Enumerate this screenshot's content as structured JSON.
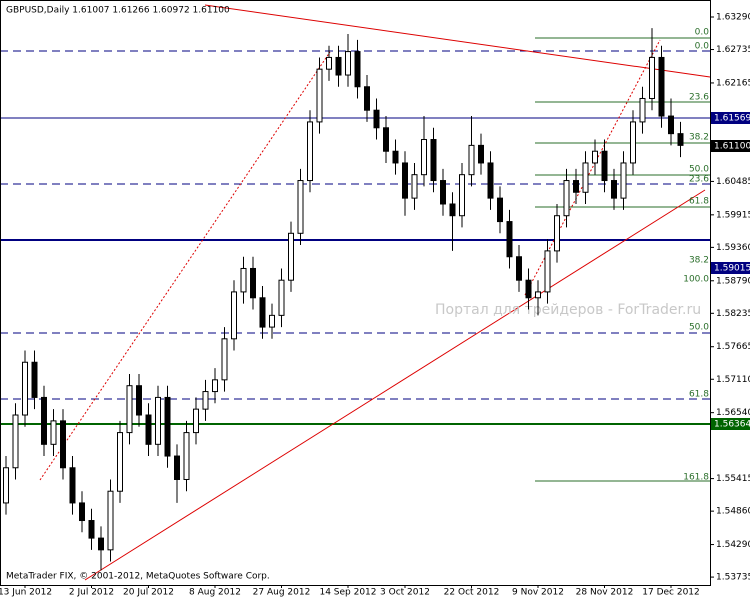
{
  "chart_data": {
    "type": "candlestick",
    "title": "GBPUSD,Daily  1.61007 1.61266 1.60972 1.61100",
    "footer": "MetaTrader FIX, © 2001-2012, MetaQuotes Software Corp.",
    "watermark": "Портал для трейдеров - ForTrader.ru",
    "categories": [
      null,
      null,
      "13 Jun 2012",
      null,
      null,
      null,
      null,
      null,
      null,
      "2 Jul 2012",
      null,
      null,
      null,
      null,
      null,
      "20 Jul 2012",
      null,
      null,
      null,
      null,
      null,
      null,
      "8 Aug 2012",
      null,
      null,
      null,
      null,
      null,
      null,
      "27 Aug 2012",
      null,
      null,
      null,
      null,
      null,
      null,
      "14 Sep 2012",
      null,
      null,
      null,
      null,
      null,
      "3 Oct 2012",
      null,
      null,
      null,
      null,
      null,
      null,
      "22 Oct 2012",
      null,
      null,
      null,
      null,
      null,
      null,
      "9 Nov 2012",
      null,
      null,
      null,
      null,
      null,
      null,
      "28 Nov 2012",
      null,
      null,
      null,
      null,
      null,
      null,
      "17 Dec 2012",
      null
    ],
    "open": [
      1.55,
      1.556,
      1.565,
      1.574,
      1.568,
      1.56,
      1.564,
      1.556,
      1.55,
      1.547,
      1.544,
      1.542,
      1.552,
      1.562,
      1.57,
      1.565,
      1.56,
      1.568,
      1.558,
      1.554,
      1.562,
      1.566,
      1.569,
      1.571,
      1.578,
      1.586,
      1.59,
      1.585,
      1.58,
      1.582,
      1.588,
      1.596,
      1.605,
      1.615,
      1.624,
      1.626,
      1.623,
      1.627,
      1.621,
      1.617,
      1.614,
      1.61,
      1.608,
      1.602,
      1.606,
      1.612,
      1.605,
      1.601,
      1.599,
      1.606,
      1.611,
      1.608,
      1.602,
      1.598,
      1.592,
      1.588,
      1.585,
      1.586,
      1.593,
      1.599,
      1.605,
      1.603,
      1.608,
      1.61,
      1.605,
      1.602,
      1.608,
      1.615,
      1.619,
      1.626,
      1.616,
      1.613
    ],
    "high": [
      1.558,
      1.567,
      1.576,
      1.576,
      1.57,
      1.566,
      1.566,
      1.558,
      1.552,
      1.549,
      1.546,
      1.554,
      1.564,
      1.572,
      1.572,
      1.567,
      1.57,
      1.57,
      1.56,
      1.564,
      1.568,
      1.571,
      1.573,
      1.58,
      1.588,
      1.592,
      1.592,
      1.587,
      1.584,
      1.59,
      1.598,
      1.607,
      1.617,
      1.626,
      1.628,
      1.628,
      1.63,
      1.629,
      1.623,
      1.619,
      1.616,
      1.612,
      1.61,
      1.608,
      1.616,
      1.614,
      1.607,
      1.603,
      1.608,
      1.616,
      1.613,
      1.61,
      1.604,
      1.6,
      1.594,
      1.59,
      1.588,
      1.595,
      1.601,
      1.607,
      1.607,
      1.61,
      1.612,
      1.612,
      1.607,
      1.61,
      1.617,
      1.621,
      1.631,
      1.628,
      1.619,
      1.615
    ],
    "low": [
      1.548,
      1.554,
      1.563,
      1.566,
      1.558,
      1.558,
      1.554,
      1.548,
      1.545,
      1.542,
      1.5385,
      1.54,
      1.55,
      1.56,
      1.563,
      1.558,
      1.558,
      1.556,
      1.55,
      1.552,
      1.56,
      1.564,
      1.567,
      1.569,
      1.576,
      1.584,
      1.583,
      1.578,
      1.578,
      1.58,
      1.586,
      1.594,
      1.603,
      1.613,
      1.622,
      1.621,
      1.621,
      1.619,
      1.615,
      1.612,
      1.608,
      1.606,
      1.599,
      1.6,
      1.604,
      1.603,
      1.599,
      1.593,
      1.597,
      1.604,
      1.606,
      1.6,
      1.596,
      1.59,
      1.586,
      1.583,
      1.582,
      1.584,
      1.591,
      1.597,
      1.601,
      1.601,
      1.606,
      1.603,
      1.6,
      1.6,
      1.606,
      1.613,
      1.617,
      1.614,
      1.611,
      1.609
    ],
    "close": [
      1.556,
      1.565,
      1.574,
      1.568,
      1.56,
      1.564,
      1.556,
      1.55,
      1.547,
      1.544,
      1.542,
      1.552,
      1.562,
      1.57,
      1.565,
      1.56,
      1.568,
      1.558,
      1.554,
      1.562,
      1.566,
      1.569,
      1.571,
      1.578,
      1.586,
      1.59,
      1.585,
      1.58,
      1.582,
      1.588,
      1.596,
      1.605,
      1.615,
      1.624,
      1.626,
      1.623,
      1.627,
      1.621,
      1.617,
      1.614,
      1.61,
      1.608,
      1.602,
      1.606,
      1.612,
      1.605,
      1.601,
      1.599,
      1.606,
      1.611,
      1.608,
      1.602,
      1.598,
      1.592,
      1.588,
      1.585,
      1.586,
      1.593,
      1.599,
      1.605,
      1.603,
      1.608,
      1.61,
      1.605,
      1.602,
      1.608,
      1.615,
      1.619,
      1.626,
      1.616,
      1.613,
      1.611
    ],
    "ylim": [
      1.536,
      1.6358
    ],
    "yticks": [
      {
        "value": 1.6329,
        "label": "1.63290"
      },
      {
        "value": 1.62735,
        "label": "1.62735"
      },
      {
        "value": 1.62165,
        "label": "1.62165"
      },
      {
        "value": 1.60485,
        "label": "1.60485"
      },
      {
        "value": 1.59915,
        "label": "1.59915"
      },
      {
        "value": 1.5936,
        "label": "1.59360"
      },
      {
        "value": 1.5879,
        "label": "1.58790"
      },
      {
        "value": 1.58235,
        "label": "1.58235"
      },
      {
        "value": 1.57665,
        "label": "1.57665"
      },
      {
        "value": 1.5711,
        "label": "1.57110"
      },
      {
        "value": 1.5654,
        "label": "1.56540"
      },
      {
        "value": 1.55415,
        "label": "1.55415"
      },
      {
        "value": 1.5486,
        "label": "1.54860"
      },
      {
        "value": 1.5429,
        "label": "1.54290"
      },
      {
        "value": 1.53735,
        "label": "1.53735"
      }
    ],
    "price_tags": [
      "1.61569",
      "1.61100",
      "1.59015",
      "1.56364"
    ],
    "fib_levels": [
      "0.0",
      "0.0",
      "23.6",
      "38.2",
      "50.0",
      "23.6",
      "61.8",
      "38.2",
      "100.0",
      "50.0",
      "61.8",
      "161.8"
    ]
  }
}
